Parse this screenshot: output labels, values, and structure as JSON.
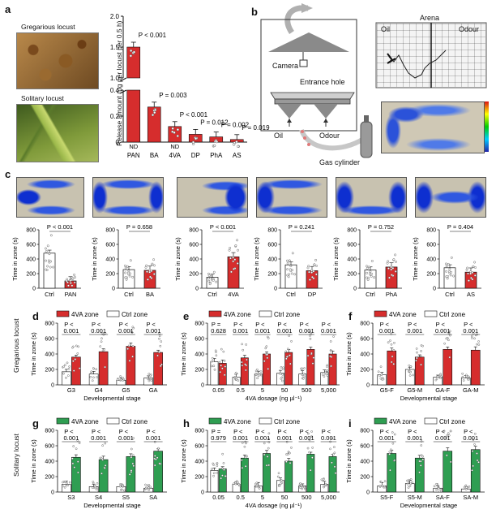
{
  "panel_labels": {
    "a": "a",
    "b": "b",
    "c": "c",
    "d": "d",
    "e": "e",
    "f": "f",
    "g": "g",
    "h": "h",
    "i": "i"
  },
  "panel_a": {
    "photo_top_label": "Gregarious locust",
    "photo_bottom_label": "Solitary locust"
  },
  "panel_b": {
    "camera_label": "Camera",
    "entrance_label": "Entrance hole",
    "oil_label": "Oil",
    "odour_label": "Odour",
    "gas_label": "Gas cylinder",
    "arena_title": "Arena",
    "arena_oil": "Oil",
    "arena_odour": "Odour"
  },
  "row_labels": {
    "gregarious": "Gregarious locust",
    "solitary": "Solitary locust"
  },
  "legend": {
    "zone_4va": "4VA zone",
    "zone_ctrl": "Ctrl zone"
  },
  "colors": {
    "red": "#d62d2d",
    "green": "#2f9e52",
    "white": "#ffffff",
    "heat_bg": "#c9c4b4"
  },
  "chart_data": [
    {
      "id": "a",
      "type": "bar",
      "ylabel": "Release amount (ng per locust per 0.5 h)",
      "categories": [
        "PAN",
        "BA",
        "4VA",
        "DP",
        "PhA",
        "AS"
      ],
      "values": [
        1.5,
        0.27,
        0.12,
        0.06,
        0.04,
        0.02
      ],
      "bar_labels": [
        "ND",
        "",
        "ND",
        "",
        "",
        ""
      ],
      "p_labels": [
        "P < 0.001",
        "P = 0.003",
        "P < 0.001",
        "P = 0.012",
        "P = 0.002",
        "P = 0.019"
      ],
      "y_ticks_lower": [
        "0",
        "0.2",
        "0.4"
      ],
      "y_ticks_upper": [
        "1.0",
        "1.5",
        "2.0"
      ],
      "axis_break": true,
      "color": "#d62d2d"
    },
    {
      "id": "c1",
      "type": "bar",
      "ylabel": "Time in zone (s)",
      "categories": [
        "Ctrl",
        "PAN"
      ],
      "values": [
        480,
        100
      ],
      "p_label": "P < 0.001",
      "ylim": [
        0,
        800
      ],
      "y_ticks": [
        "0",
        "200",
        "400",
        "600",
        "800"
      ],
      "colors": [
        "#ffffff",
        "#d62d2d"
      ]
    },
    {
      "id": "c2",
      "type": "bar",
      "ylabel": "Time in zone (s)",
      "categories": [
        "Ctrl",
        "BA"
      ],
      "values": [
        255,
        245
      ],
      "p_label": "P = 0.658",
      "ylim": [
        0,
        800
      ],
      "y_ticks": [
        "0",
        "200",
        "400",
        "600",
        "800"
      ],
      "colors": [
        "#ffffff",
        "#d62d2d"
      ]
    },
    {
      "id": "c3",
      "type": "bar",
      "ylabel": "Time in zone (s)",
      "categories": [
        "Ctrl",
        "4VA"
      ],
      "values": [
        150,
        430
      ],
      "p_label": "P < 0.001",
      "ylim": [
        0,
        800
      ],
      "y_ticks": [
        "0",
        "200",
        "400",
        "600",
        "800"
      ],
      "colors": [
        "#ffffff",
        "#d62d2d"
      ]
    },
    {
      "id": "c4",
      "type": "bar",
      "ylabel": "Time in zone (s)",
      "categories": [
        "Ctrl",
        "DP"
      ],
      "values": [
        320,
        240
      ],
      "p_label": "P = 0.241",
      "ylim": [
        0,
        800
      ],
      "y_ticks": [
        "0",
        "200",
        "400",
        "600",
        "800"
      ],
      "colors": [
        "#ffffff",
        "#d62d2d"
      ]
    },
    {
      "id": "c5",
      "type": "bar",
      "ylabel": "Time in zone (s)",
      "categories": [
        "Ctrl",
        "PhA"
      ],
      "values": [
        250,
        290
      ],
      "p_label": "P = 0.752",
      "ylim": [
        0,
        800
      ],
      "y_ticks": [
        "0",
        "200",
        "400",
        "600",
        "800"
      ],
      "colors": [
        "#ffffff",
        "#d62d2d"
      ]
    },
    {
      "id": "c6",
      "type": "bar",
      "ylabel": "Time in zone (s)",
      "categories": [
        "Ctrl",
        "AS"
      ],
      "values": [
        280,
        220
      ],
      "p_label": "P = 0.404",
      "ylim": [
        0,
        800
      ],
      "y_ticks": [
        "0",
        "200",
        "400",
        "600",
        "800"
      ],
      "colors": [
        "#ffffff",
        "#d62d2d"
      ]
    },
    {
      "id": "d",
      "type": "bar",
      "xlabel": "Developmental stage",
      "ylabel": "Time in zone (s)",
      "categories": [
        "G3",
        "G4",
        "G5",
        "GA"
      ],
      "series": [
        {
          "name": "Ctrl zone",
          "values": [
            170,
            140,
            60,
            90
          ]
        },
        {
          "name": "4VA zone",
          "values": [
            360,
            430,
            500,
            420
          ]
        }
      ],
      "p_top": [
        "P <",
        "P <",
        "P <",
        "P <"
      ],
      "p_bottom": [
        "0.001",
        "0.001",
        "0.001",
        "0.001"
      ],
      "ylim": [
        0,
        800
      ],
      "y_ticks": [
        "0",
        "200",
        "400",
        "600",
        "800"
      ],
      "colors": [
        "#ffffff",
        "#d62d2d"
      ]
    },
    {
      "id": "e",
      "type": "bar",
      "xlabel": "4VA dosage (ng µl⁻¹)",
      "ylabel": "Time in zone (s)",
      "categories": [
        "0.05",
        "0.5",
        "5",
        "50",
        "500",
        "5,000"
      ],
      "series": [
        {
          "name": "Ctrl zone",
          "values": [
            300,
            100,
            140,
            150,
            140,
            160
          ]
        },
        {
          "name": "4VA zone",
          "values": [
            280,
            350,
            400,
            420,
            460,
            400
          ]
        }
      ],
      "p_top": [
        "P =",
        "P <",
        "P <",
        "P <",
        "P <",
        "P <"
      ],
      "p_bottom": [
        "0.628",
        "0.001",
        "0.001",
        "0.001",
        "0.001",
        "0.001"
      ],
      "ylim": [
        0,
        800
      ],
      "y_ticks": [
        "0",
        "200",
        "400",
        "600",
        "800"
      ],
      "colors": [
        "#ffffff",
        "#d62d2d"
      ]
    },
    {
      "id": "f",
      "type": "bar",
      "xlabel": "Developmental stage",
      "ylabel": "Time in zone (s)",
      "categories": [
        "G5-F",
        "G5-M",
        "GA-F",
        "GA-M"
      ],
      "series": [
        {
          "name": "Ctrl zone",
          "values": [
            130,
            200,
            100,
            90
          ]
        },
        {
          "name": "4VA zone",
          "values": [
            440,
            360,
            460,
            450
          ]
        }
      ],
      "p_top": [
        "P <",
        "P <",
        "P <",
        "P <"
      ],
      "p_bottom": [
        "0.001",
        "0.001",
        "0.001",
        "0.001"
      ],
      "ylim": [
        0,
        800
      ],
      "y_ticks": [
        "0",
        "200",
        "400",
        "600",
        "800"
      ],
      "colors": [
        "#ffffff",
        "#d62d2d"
      ]
    },
    {
      "id": "g",
      "type": "bar",
      "xlabel": "Developmental stage",
      "ylabel": "Time in zone (s)",
      "categories": [
        "S3",
        "S4",
        "S5",
        "SA"
      ],
      "series": [
        {
          "name": "Ctrl zone",
          "values": [
            100,
            70,
            70,
            50
          ]
        },
        {
          "name": "4VA zone",
          "values": [
            450,
            420,
            460,
            530
          ]
        }
      ],
      "p_top": [
        "P <",
        "P <",
        "P <",
        "P <"
      ],
      "p_bottom": [
        "0.001",
        "0.001",
        "0.001",
        "0.001"
      ],
      "ylim": [
        0,
        800
      ],
      "y_ticks": [
        "0",
        "200",
        "400",
        "600",
        "800"
      ],
      "colors": [
        "#ffffff",
        "#2f9e52"
      ]
    },
    {
      "id": "h",
      "type": "bar",
      "xlabel": "4VA dosage (ng µl⁻¹)",
      "ylabel": "Time in zone (s)",
      "categories": [
        "0.05",
        "0.5",
        "5",
        "50",
        "500",
        "5,000"
      ],
      "series": [
        {
          "name": "Ctrl zone",
          "values": [
            280,
            100,
            80,
            150,
            80,
            100
          ]
        },
        {
          "name": "4VA zone",
          "values": [
            300,
            440,
            500,
            400,
            490,
            460
          ]
        }
      ],
      "p_top": [
        "P =",
        "P <",
        "P <",
        "P <",
        "P <",
        "P <"
      ],
      "p_bottom": [
        "0.979",
        "0.001",
        "0.001",
        "0.001",
        "0.001",
        "0.001"
      ],
      "ylim": [
        0,
        800
      ],
      "y_ticks": [
        "0",
        "200",
        "400",
        "600",
        "800"
      ],
      "colors": [
        "#ffffff",
        "#2f9e52"
      ]
    },
    {
      "id": "i",
      "type": "bar",
      "xlabel": "Developmental stage",
      "ylabel": "Time in zone (s)",
      "categories": [
        "S5-F",
        "S5-M",
        "SA-F",
        "SA-M"
      ],
      "series": [
        {
          "name": "Ctrl zone",
          "values": [
            80,
            110,
            50,
            40
          ]
        },
        {
          "name": "4VA zone",
          "values": [
            500,
            440,
            530,
            550
          ]
        }
      ],
      "p_top": [
        "P <",
        "P <",
        "P <",
        "P <"
      ],
      "p_bottom": [
        "0.001",
        "0.001",
        "0.001",
        "0.001"
      ],
      "ylim": [
        0,
        800
      ],
      "y_ticks": [
        "0",
        "200",
        "400",
        "600",
        "800"
      ],
      "colors": [
        "#ffffff",
        "#2f9e52"
      ]
    }
  ]
}
